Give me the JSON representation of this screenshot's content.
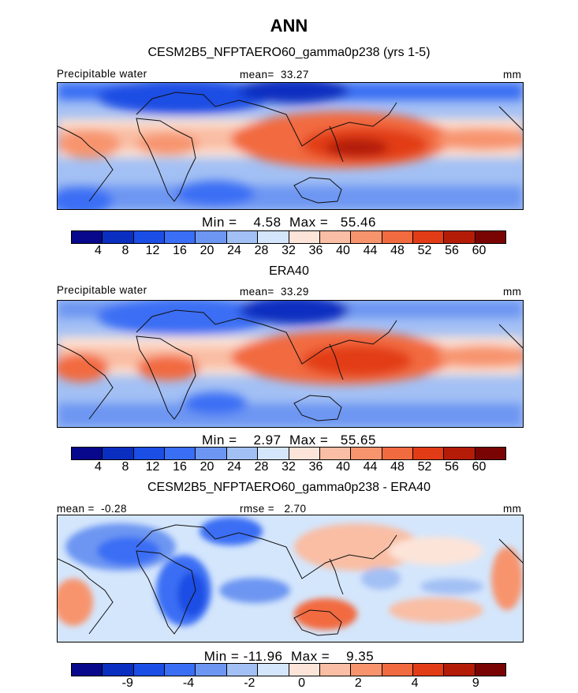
{
  "figure": {
    "title": "ANN",
    "units": "mm",
    "colors": {
      "abs": [
        "#08088c",
        "#0a2ec0",
        "#1a4ee4",
        "#3a6ef4",
        "#6d96f2",
        "#a3c0f4",
        "#d4e6fc",
        "#fde4d8",
        "#f9bea4",
        "#f7946e",
        "#f26a40",
        "#e23c16",
        "#b41c08",
        "#7a0404"
      ],
      "diff": [
        "#08088c",
        "#0a2ec0",
        "#1a4ee4",
        "#3a6ef4",
        "#6d96f2",
        "#a3c0f4",
        "#d4e6fc",
        "#fde4d8",
        "#f9bea4",
        "#f7946e",
        "#f26a40",
        "#e23c16",
        "#b41c08",
        "#7a0404"
      ]
    },
    "panels": [
      {
        "id": "model",
        "subtitle": "CESM2B5_NFPTAERO60_gamma0p238 (yrs 1-5)",
        "left_label": "Precipitable water",
        "center_label": "mean=  33.27",
        "right_label": "mm",
        "min_max": "Min =    4.58  Max =   55.46",
        "ticks": [
          "4",
          "8",
          "12",
          "16",
          "20",
          "24",
          "28",
          "32",
          "36",
          "40",
          "44",
          "48",
          "52",
          "56",
          "60"
        ]
      },
      {
        "id": "obs",
        "subtitle": "ERA40",
        "left_label": "Precipitable water",
        "center_label": "mean=  33.29",
        "right_label": "mm",
        "min_max": "Min =    2.97  Max =   55.65",
        "ticks": [
          "4",
          "8",
          "12",
          "16",
          "20",
          "24",
          "28",
          "32",
          "36",
          "40",
          "44",
          "48",
          "52",
          "56",
          "60"
        ]
      },
      {
        "id": "diff",
        "subtitle": "CESM2B5_NFPTAERO60_gamma0p238 - ERA40",
        "left_label": "mean =  -0.28",
        "center_label": "rmse =   2.70",
        "right_label": "mm",
        "min_max": "Min = -11.96  Max =    9.35",
        "ticks": [
          "-9",
          "-4",
          "-2",
          "0",
          "2",
          "4",
          "9"
        ]
      }
    ]
  }
}
